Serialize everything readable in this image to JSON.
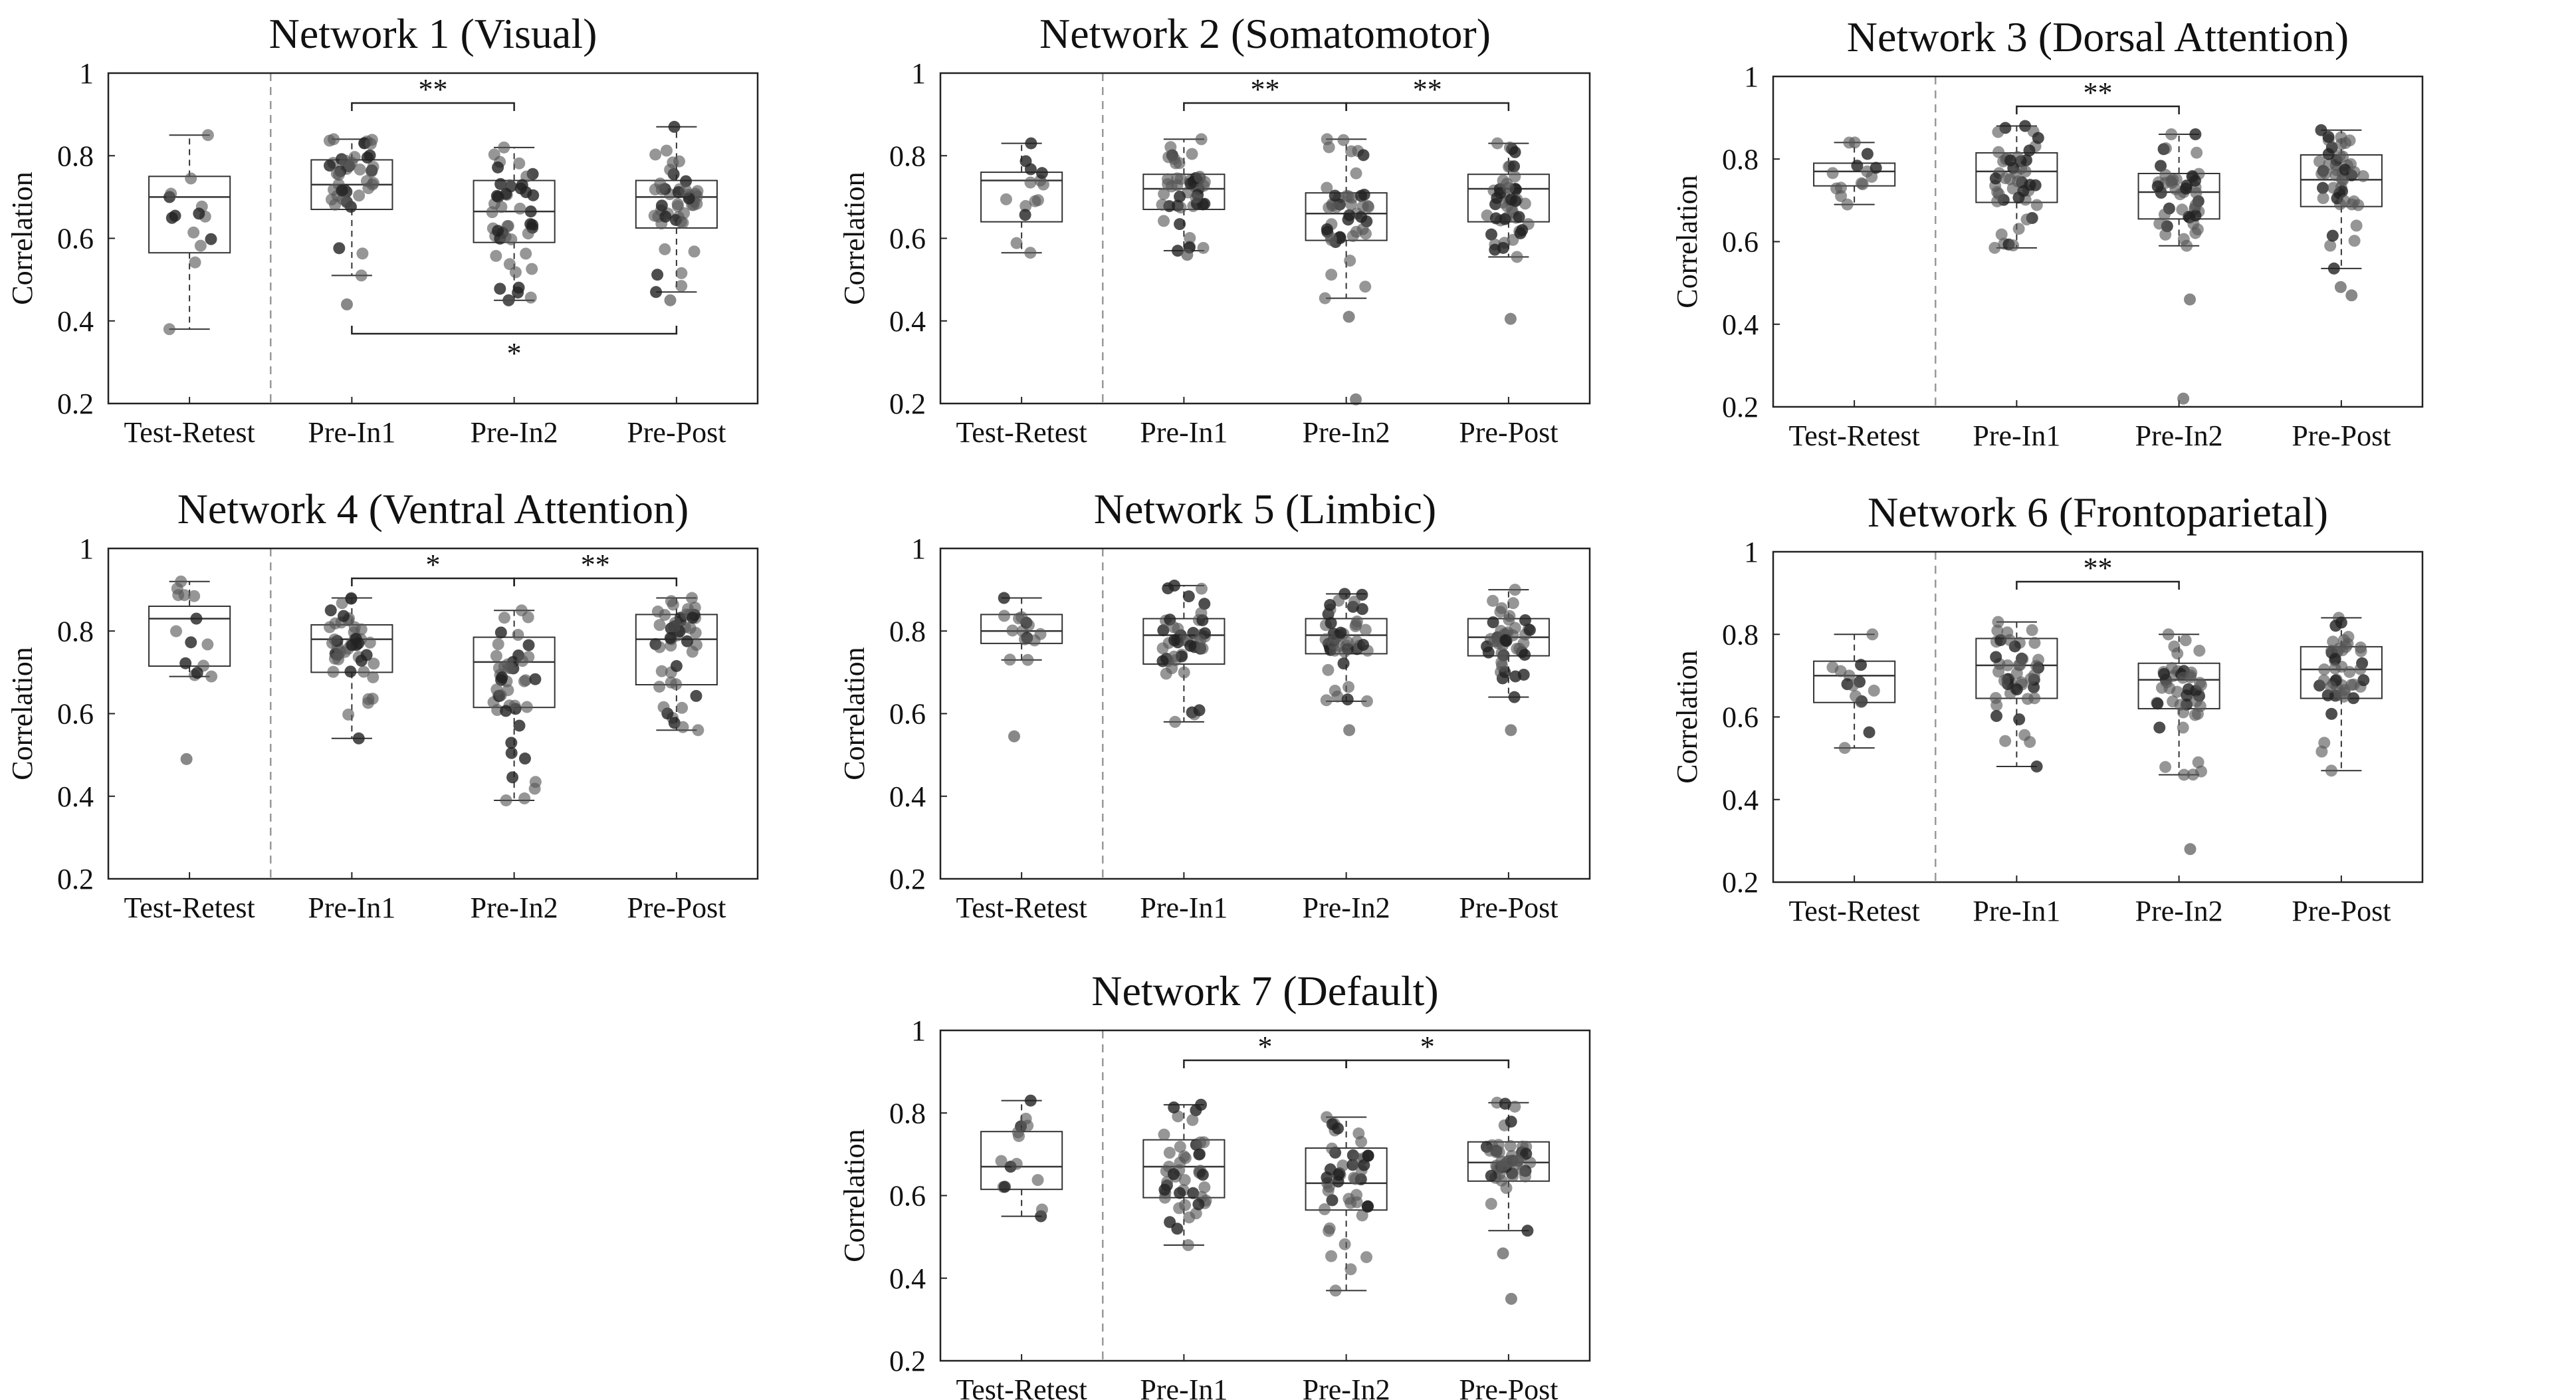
{
  "chart_data": [
    {
      "type": "box",
      "title": "Network 1 (Visual)",
      "ylabel": "Correlation",
      "ylim": [
        0.2,
        1
      ],
      "yticks": [
        "0.2",
        "0.4",
        "0.6",
        "0.8",
        "1"
      ],
      "categories": [
        "Test-Retest",
        "Pre-In1",
        "Pre-In2",
        "Pre-Post"
      ],
      "separator_after_index": 0,
      "boxes": [
        {
          "min": 0.38,
          "q1": 0.565,
          "median": 0.7,
          "q3": 0.75,
          "max": 0.85
        },
        {
          "min": 0.51,
          "q1": 0.67,
          "median": 0.73,
          "q3": 0.79,
          "max": 0.84
        },
        {
          "min": 0.45,
          "q1": 0.59,
          "median": 0.665,
          "q3": 0.74,
          "max": 0.82
        },
        {
          "min": 0.47,
          "q1": 0.625,
          "median": 0.7,
          "q3": 0.74,
          "max": 0.87
        }
      ],
      "outliers": [
        [],
        [
          0.44
        ],
        [
          0.45
        ],
        [
          0.45
        ]
      ],
      "significance": [
        {
          "from": 1,
          "to": 2,
          "label": "**",
          "position": "top"
        },
        {
          "from": 1,
          "to": 3,
          "label": "*",
          "position": "bottom"
        }
      ]
    },
    {
      "type": "box",
      "title": "Network 2 (Somatomotor)",
      "ylabel": "Correlation",
      "ylim": [
        0.2,
        1
      ],
      "yticks": [
        "0.2",
        "0.4",
        "0.6",
        "0.8",
        "1"
      ],
      "categories": [
        "Test-Retest",
        "Pre-In1",
        "Pre-In2",
        "Pre-Post"
      ],
      "separator_after_index": 0,
      "boxes": [
        {
          "min": 0.565,
          "q1": 0.64,
          "median": 0.74,
          "q3": 0.76,
          "max": 0.83
        },
        {
          "min": 0.57,
          "q1": 0.67,
          "median": 0.72,
          "q3": 0.755,
          "max": 0.84
        },
        {
          "min": 0.455,
          "q1": 0.595,
          "median": 0.66,
          "q3": 0.71,
          "max": 0.84
        },
        {
          "min": 0.555,
          "q1": 0.64,
          "median": 0.72,
          "q3": 0.755,
          "max": 0.83
        }
      ],
      "outliers": [
        [],
        [
          0.56
        ],
        [
          0.41,
          0.21
        ],
        [
          0.405
        ]
      ],
      "significance": [
        {
          "from": 1,
          "to": 2,
          "label": "**",
          "position": "top"
        },
        {
          "from": 2,
          "to": 3,
          "label": "**",
          "position": "top"
        }
      ]
    },
    {
      "type": "box",
      "title": "Network 3 (Dorsal Attention)",
      "ylabel": "Correlation",
      "ylim": [
        0.2,
        1
      ],
      "yticks": [
        "0.2",
        "0.4",
        "0.6",
        "0.8",
        "1"
      ],
      "categories": [
        "Test-Retest",
        "Pre-In1",
        "Pre-In2",
        "Pre-Post"
      ],
      "separator_after_index": 0,
      "boxes": [
        {
          "min": 0.69,
          "q1": 0.735,
          "median": 0.77,
          "q3": 0.79,
          "max": 0.84
        },
        {
          "min": 0.585,
          "q1": 0.695,
          "median": 0.77,
          "q3": 0.815,
          "max": 0.88
        },
        {
          "min": 0.59,
          "q1": 0.655,
          "median": 0.72,
          "q3": 0.765,
          "max": 0.86
        },
        {
          "min": 0.535,
          "q1": 0.685,
          "median": 0.75,
          "q3": 0.81,
          "max": 0.87
        }
      ],
      "outliers": [
        [],
        [],
        [
          0.46,
          0.22
        ],
        [
          0.47,
          0.49
        ]
      ],
      "significance": [
        {
          "from": 1,
          "to": 2,
          "label": "**",
          "position": "top"
        }
      ]
    },
    {
      "type": "box",
      "title": "Network 4 (Ventral Attention)",
      "ylabel": "Correlation",
      "ylim": [
        0.2,
        1
      ],
      "yticks": [
        "0.2",
        "0.4",
        "0.6",
        "0.8",
        "1"
      ],
      "categories": [
        "Test-Retest",
        "Pre-In1",
        "Pre-In2",
        "Pre-Post"
      ],
      "separator_after_index": 0,
      "boxes": [
        {
          "min": 0.69,
          "q1": 0.715,
          "median": 0.83,
          "q3": 0.86,
          "max": 0.92
        },
        {
          "min": 0.54,
          "q1": 0.7,
          "median": 0.78,
          "q3": 0.815,
          "max": 0.88
        },
        {
          "min": 0.39,
          "q1": 0.615,
          "median": 0.725,
          "q3": 0.785,
          "max": 0.85
        },
        {
          "min": 0.56,
          "q1": 0.67,
          "median": 0.78,
          "q3": 0.84,
          "max": 0.88
        }
      ],
      "outliers": [
        [
          0.49
        ],
        [],
        [],
        []
      ],
      "significance": [
        {
          "from": 1,
          "to": 2,
          "label": "*",
          "position": "top"
        },
        {
          "from": 2,
          "to": 3,
          "label": "**",
          "position": "top"
        }
      ]
    },
    {
      "type": "box",
      "title": "Network 5 (Limbic)",
      "ylabel": "Correlation",
      "ylim": [
        0.2,
        1
      ],
      "yticks": [
        "0.2",
        "0.4",
        "0.6",
        "0.8",
        "1"
      ],
      "categories": [
        "Test-Retest",
        "Pre-In1",
        "Pre-In2",
        "Pre-Post"
      ],
      "separator_after_index": 0,
      "boxes": [
        {
          "min": 0.73,
          "q1": 0.77,
          "median": 0.8,
          "q3": 0.84,
          "max": 0.88
        },
        {
          "min": 0.58,
          "q1": 0.72,
          "median": 0.79,
          "q3": 0.83,
          "max": 0.91
        },
        {
          "min": 0.63,
          "q1": 0.745,
          "median": 0.79,
          "q3": 0.83,
          "max": 0.89
        },
        {
          "min": 0.64,
          "q1": 0.74,
          "median": 0.785,
          "q3": 0.83,
          "max": 0.9
        }
      ],
      "outliers": [
        [
          0.545
        ],
        [],
        [
          0.56
        ],
        [
          0.56
        ]
      ],
      "significance": []
    },
    {
      "type": "box",
      "title": "Network 6 (Frontoparietal)",
      "ylabel": "Correlation",
      "ylim": [
        0.2,
        1
      ],
      "yticks": [
        "0.2",
        "0.4",
        "0.6",
        "0.8",
        "1"
      ],
      "categories": [
        "Test-Retest",
        "Pre-In1",
        "Pre-In2",
        "Pre-Post"
      ],
      "separator_after_index": 0,
      "boxes": [
        {
          "min": 0.525,
          "q1": 0.635,
          "median": 0.7,
          "q3": 0.735,
          "max": 0.8
        },
        {
          "min": 0.48,
          "q1": 0.645,
          "median": 0.725,
          "q3": 0.79,
          "max": 0.83
        },
        {
          "min": 0.46,
          "q1": 0.62,
          "median": 0.69,
          "q3": 0.73,
          "max": 0.8
        },
        {
          "min": 0.47,
          "q1": 0.645,
          "median": 0.715,
          "q3": 0.77,
          "max": 0.84
        }
      ],
      "outliers": [
        [],
        [],
        [
          0.28
        ],
        []
      ],
      "significance": [
        {
          "from": 1,
          "to": 2,
          "label": "**",
          "position": "top"
        }
      ]
    },
    {
      "type": "box",
      "title": "Network 7 (Default)",
      "ylabel": "Correlation",
      "ylim": [
        0.2,
        1
      ],
      "yticks": [
        "0.2",
        "0.4",
        "0.6",
        "0.8",
        "1"
      ],
      "categories": [
        "Test-Retest",
        "Pre-In1",
        "Pre-In2",
        "Pre-Post"
      ],
      "separator_after_index": 0,
      "boxes": [
        {
          "min": 0.55,
          "q1": 0.615,
          "median": 0.67,
          "q3": 0.755,
          "max": 0.83
        },
        {
          "min": 0.48,
          "q1": 0.595,
          "median": 0.67,
          "q3": 0.735,
          "max": 0.82
        },
        {
          "min": 0.37,
          "q1": 0.565,
          "median": 0.63,
          "q3": 0.715,
          "max": 0.79
        },
        {
          "min": 0.515,
          "q1": 0.635,
          "median": 0.68,
          "q3": 0.73,
          "max": 0.825
        }
      ],
      "outliers": [
        [],
        [],
        [],
        [
          0.46,
          0.35
        ]
      ],
      "significance": [
        {
          "from": 1,
          "to": 2,
          "label": "*",
          "position": "top"
        },
        {
          "from": 2,
          "to": 3,
          "label": "*",
          "position": "top"
        }
      ]
    }
  ]
}
